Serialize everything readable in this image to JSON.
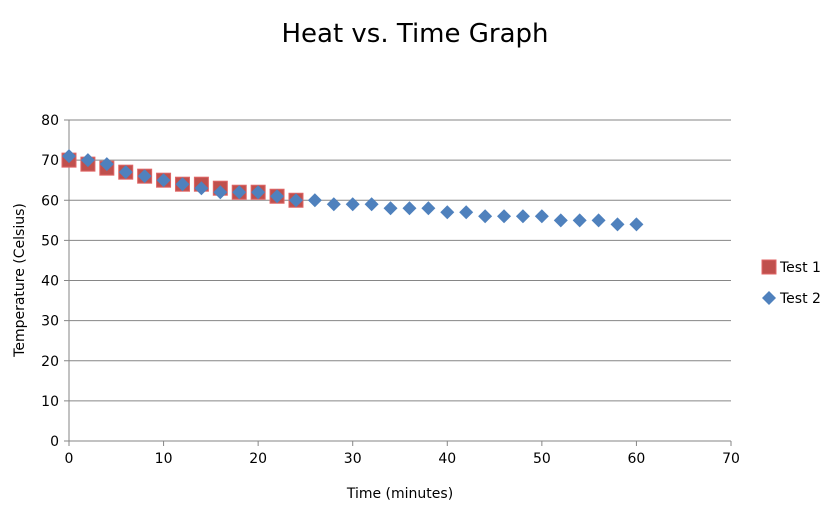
{
  "chart_data": {
    "type": "scatter",
    "title": "Heat vs. Time Graph",
    "xlabel": "Time (minutes)",
    "ylabel": "Temperature (Celsius)",
    "xlim": [
      0,
      70
    ],
    "ylim": [
      0,
      80
    ],
    "xticks": [
      0,
      10,
      20,
      30,
      40,
      50,
      60,
      70
    ],
    "yticks": [
      0,
      10,
      20,
      30,
      40,
      50,
      60,
      70,
      80
    ],
    "grid": "horizontal",
    "legend": "right",
    "series": [
      {
        "name": "Test 1",
        "marker": "square",
        "color": "#C0504D",
        "x": [
          0,
          2,
          4,
          6,
          8,
          10,
          12,
          14,
          16,
          18,
          20,
          22,
          24
        ],
        "y": [
          70,
          69,
          68,
          67,
          66,
          65,
          64,
          64,
          63,
          62,
          62,
          61,
          60
        ]
      },
      {
        "name": "Test 2",
        "marker": "diamond",
        "color": "#4F81BD",
        "x": [
          0,
          2,
          4,
          6,
          8,
          10,
          12,
          14,
          16,
          18,
          20,
          22,
          24,
          26,
          28,
          30,
          32,
          34,
          36,
          38,
          40,
          42,
          44,
          46,
          48,
          50,
          52,
          54,
          56,
          58,
          60
        ],
        "y": [
          71,
          70,
          69,
          67,
          66,
          65,
          64,
          63,
          62,
          62,
          62,
          61,
          60,
          60,
          59,
          59,
          59,
          58,
          58,
          58,
          57,
          57,
          56,
          56,
          56,
          56,
          55,
          55,
          55,
          54,
          54
        ]
      }
    ]
  }
}
